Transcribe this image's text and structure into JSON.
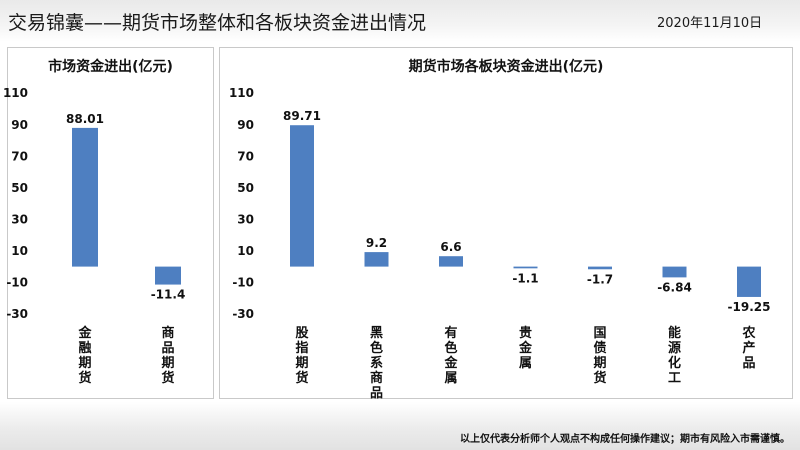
{
  "header": {
    "title": "交易锦囊——期货市场整体和各板块资金进出情况",
    "date": "2020年11月10日"
  },
  "footer": {
    "disclaimer": "以上仅代表分析师个人观点不构成任何操作建议；期市有风险入市需谨慎。"
  },
  "colors": {
    "bar": "#4e7fc1"
  },
  "chart_data": [
    {
      "type": "bar",
      "title": "市场资金进出(亿元)",
      "categories": [
        "金融期货",
        "商品期货"
      ],
      "values": [
        88.01,
        -11.4
      ],
      "value_labels": [
        "88.01",
        "-11.4"
      ],
      "yticks": [
        110,
        90,
        70,
        50,
        30,
        10,
        -10,
        -30
      ],
      "ylim": [
        -30,
        110
      ],
      "grid": false,
      "legend": "none"
    },
    {
      "type": "bar",
      "title": "期货市场各板块资金进出(亿元)",
      "categories": [
        "股指期货",
        "黑色系商品",
        "有色金属",
        "贵金属",
        "国债期货",
        "能源化工",
        "农产品"
      ],
      "values": [
        89.71,
        9.2,
        6.6,
        -1.1,
        -1.7,
        -6.84,
        -19.25
      ],
      "value_labels": [
        "89.71",
        "9.2",
        "6.6",
        "-1.1",
        "-1.7",
        "-6.84",
        "-19.25"
      ],
      "yticks": [
        110,
        90,
        70,
        50,
        30,
        10,
        -10,
        -30
      ],
      "ylim": [
        -30,
        110
      ],
      "grid": false,
      "legend": "none"
    }
  ]
}
